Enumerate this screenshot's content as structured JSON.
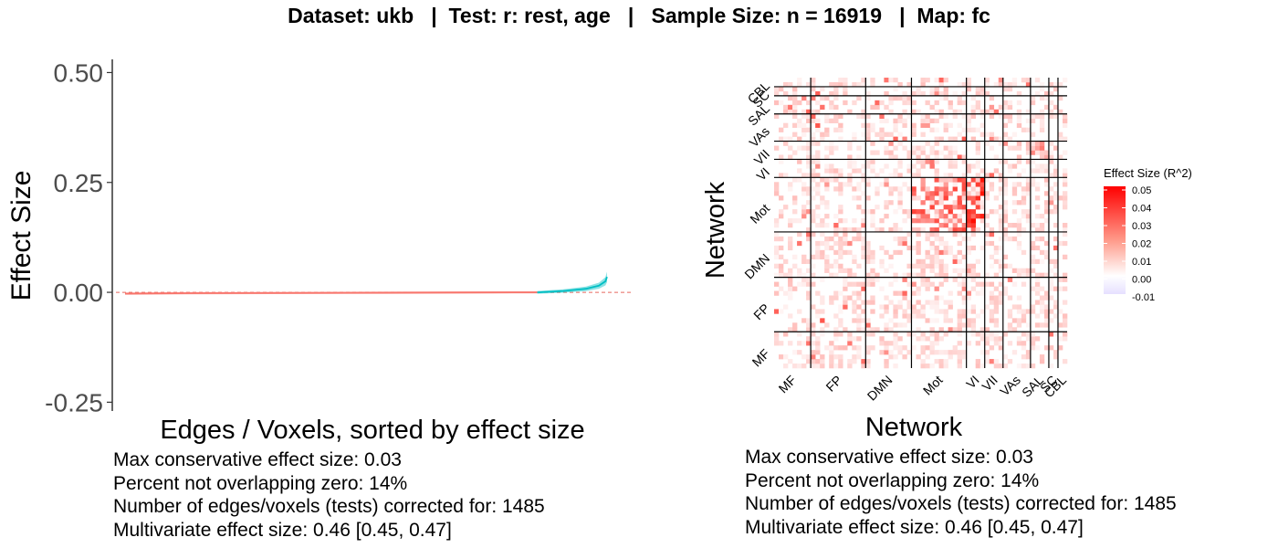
{
  "title": "Dataset: ukb   |  Test: r: rest, age   |   Sample Size: n = 16919   |  Map: fc",
  "left_stats": [
    "Max conservative effect size: 0.03",
    "Percent not overlapping zero: 14%",
    "Number of edges/voxels (tests) corrected for: 1485",
    "Multivariate effect size: 0.46 [0.45, 0.47]"
  ],
  "right_stats": [
    "Max conservative effect size: 0.03",
    "Percent not overlapping zero: 14%",
    "Number of edges/voxels (tests) corrected for: 1485",
    "Multivariate effect size: 0.46 [0.45, 0.47]"
  ],
  "chart_data": [
    {
      "type": "line",
      "xlabel": "Edges / Voxels, sorted by effect size",
      "ylabel": "Effect Size",
      "ylim": [
        -0.27,
        0.53
      ],
      "yticks": [
        -0.25,
        0.0,
        0.25,
        0.5
      ],
      "ytick_labels": [
        "-0.25",
        "0.00",
        "0.25",
        "0.50"
      ],
      "x_count": 1485,
      "reference_line_y": 0,
      "series": [
        {
          "color": "#f8766d",
          "description_points": [
            [
              0,
              -0.003
            ],
            [
              200,
              -0.002
            ],
            [
              800,
              -0.001
            ],
            [
              1200,
              0.0
            ],
            [
              1270,
              0.0
            ]
          ]
        },
        {
          "color": "#00bfc4",
          "description_points": [
            [
              1270,
              0.0
            ],
            [
              1350,
              0.003
            ],
            [
              1420,
              0.008
            ],
            [
              1460,
              0.015
            ],
            [
              1480,
              0.025
            ],
            [
              1485,
              0.035
            ]
          ]
        }
      ],
      "grid": false
    },
    {
      "type": "heatmap",
      "xlabel": "Network",
      "ylabel": "Network",
      "networks": [
        "MF",
        "FP",
        "DMN",
        "Mot",
        "VI",
        "VII",
        "VAs",
        "SAL",
        "SC",
        "CBL"
      ],
      "network_sizes": [
        4,
        6,
        5,
        6,
        2,
        2,
        3,
        2,
        1,
        1
      ],
      "legend_title": "Effect Size (R^2)",
      "legend_range": [
        -0.01,
        0.05
      ],
      "legend_ticks": [
        "0.05",
        "0.04",
        "0.03",
        "0.02",
        "0.01",
        "0.00",
        "-0.01"
      ],
      "color_low": "#e6e0ff",
      "color_mid": "#ffffff",
      "color_high": "#ff0000",
      "highlights": [
        {
          "row": "SAL",
          "col": "VII",
          "value": 0.035
        },
        {
          "row": "VII",
          "col": "SAL",
          "value": 0.03
        },
        {
          "row": "Mot",
          "col": "Mot",
          "value": 0.04
        },
        {
          "row": "Mot",
          "col": "VI",
          "value": 0.05
        }
      ],
      "grid": false
    }
  ]
}
